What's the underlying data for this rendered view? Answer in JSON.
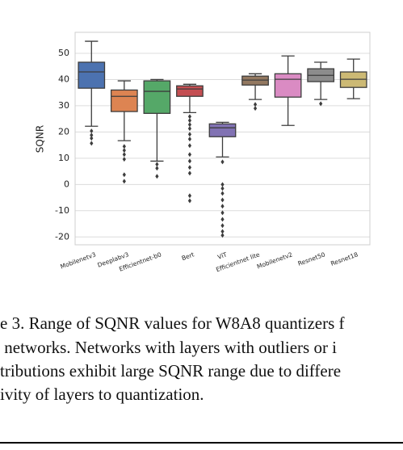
{
  "chart_data": {
    "type": "box",
    "y_label": "SQNR",
    "categories": [
      "Mobilenetv3",
      "Deeplabv3",
      "Efficientnet-b0",
      "Bert",
      "ViT",
      "Efficientnet lite",
      "Mobilenetv2",
      "Resnet50",
      "Resnet18"
    ],
    "colors": [
      "#4c72b0",
      "#dd8452",
      "#55a868",
      "#c44e52",
      "#8172b3",
      "#937860",
      "#da8bc3",
      "#8c8c8c",
      "#ccb974"
    ],
    "boxes": [
      {
        "min": 22.2,
        "q1": 36.7,
        "median": 42.9,
        "q3": 46.6,
        "max": 54.6,
        "outliers": [
          20.4,
          18.8,
          17.6,
          15.7
        ]
      },
      {
        "min": 16.7,
        "q1": 27.8,
        "median": 33.6,
        "q3": 36,
        "max": 39.5,
        "outliers": [
          14.5,
          13,
          11.4,
          9.6,
          3.7,
          1.2
        ]
      },
      {
        "min": 8.9,
        "q1": 27.1,
        "median": 35.5,
        "q3": 39.5,
        "max": 40,
        "outliers": [
          7.7,
          6.2,
          3.1
        ]
      },
      {
        "min": 27.4,
        "q1": 33.6,
        "median": 36.4,
        "q3": 37.6,
        "max": 38.2,
        "outliers": [
          25.9,
          24.4,
          22.8,
          21.3,
          19.1,
          17.3,
          14.8,
          11.4,
          8.9,
          6.5,
          4.3,
          -4.3,
          -6.2
        ]
      },
      {
        "min": 10.5,
        "q1": 18.2,
        "median": 21.6,
        "q3": 23.1,
        "max": 23.7,
        "outliers": [
          8.6,
          0,
          -1.5,
          -3.4,
          -5.9,
          -8.3,
          -10.8,
          -13.3,
          -15.7,
          -17.9,
          -19.4
        ]
      },
      {
        "min": 32.4,
        "q1": 37.9,
        "median": 39.8,
        "q3": 41.3,
        "max": 42.2,
        "outliers": [
          30.5,
          29
        ]
      },
      {
        "min": 22.5,
        "q1": 33.3,
        "median": 40.1,
        "q3": 42.2,
        "max": 49,
        "outliers": []
      },
      {
        "min": 32.4,
        "q1": 39.2,
        "median": 41.6,
        "q3": 44.1,
        "max": 46.6,
        "outliers": [
          30.8
        ]
      },
      {
        "min": 32.7,
        "q1": 37,
        "median": 40.1,
        "q3": 42.9,
        "max": 47.8,
        "outliers": []
      }
    ],
    "ylim": [
      -23,
      58
    ],
    "yticks": [
      -20,
      -10,
      0,
      10,
      20,
      30,
      40,
      50
    ],
    "grid": true
  },
  "caption": [
    "e 3. Range of SQNR values for W8A8 quantizers f",
    " networks. Networks with layers with outliers or i",
    "tributions exhibit large SQNR range due to differe",
    "ivity of layers to quantization."
  ]
}
